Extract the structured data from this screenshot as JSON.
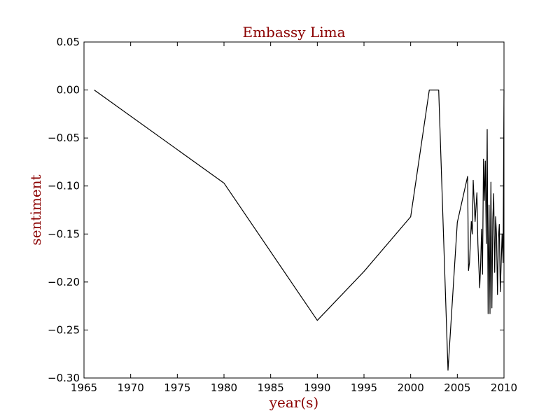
{
  "chart_data": {
    "type": "line",
    "title": "Embassy Lima",
    "xlabel": "year(s)",
    "ylabel": "sentiment",
    "xlim": [
      1965,
      2010
    ],
    "ylim": [
      -0.3,
      0.05
    ],
    "xticks": [
      1965,
      1970,
      1975,
      1980,
      1985,
      1990,
      1995,
      2000,
      2005,
      2010
    ],
    "yticks": [
      0.05,
      0.0,
      -0.05,
      -0.1,
      -0.15,
      -0.2,
      -0.25,
      -0.3
    ],
    "xtick_labels": [
      "1965",
      "1970",
      "1975",
      "1980",
      "1985",
      "1990",
      "1995",
      "2000",
      "2005",
      "2010"
    ],
    "ytick_labels": [
      "0.05",
      "0.00",
      "−0.05",
      "−0.10",
      "−0.15",
      "−0.20",
      "−0.25",
      "−0.30"
    ],
    "grid": false,
    "line_color": "#000000",
    "title_color": "#8b0000",
    "series": [
      {
        "x": [
          1966.1,
          1980.0,
          1990.0,
          1995.0,
          2000.0,
          2002.0,
          2003.0,
          2004.0,
          2005.0,
          2006.1,
          2006.2,
          2006.3,
          2006.5,
          2006.6,
          2006.7,
          2006.9,
          2007.1,
          2007.2,
          2007.4,
          2007.5,
          2007.6,
          2007.7,
          2007.8,
          2007.9,
          2008.0,
          2008.1,
          2008.2,
          2008.3,
          2008.4,
          2008.5,
          2008.6,
          2008.7,
          2008.8,
          2008.9,
          2009.0,
          2009.1,
          2009.2,
          2009.3,
          2009.4,
          2009.5,
          2009.6,
          2009.7,
          2009.8,
          2009.9,
          2010.0
        ],
        "y": [
          0.0,
          -0.097,
          -0.24,
          -0.189,
          -0.132,
          0.0,
          0.0,
          -0.292,
          -0.138,
          -0.09,
          -0.188,
          -0.18,
          -0.137,
          -0.15,
          -0.094,
          -0.137,
          -0.107,
          -0.16,
          -0.206,
          -0.18,
          -0.145,
          -0.192,
          -0.072,
          -0.115,
          -0.074,
          -0.16,
          -0.041,
          -0.233,
          -0.12,
          -0.233,
          -0.096,
          -0.227,
          -0.135,
          -0.108,
          -0.19,
          -0.132,
          -0.15,
          -0.213,
          -0.155,
          -0.14,
          -0.21,
          -0.18,
          -0.15,
          -0.18,
          0.0
        ]
      }
    ]
  }
}
